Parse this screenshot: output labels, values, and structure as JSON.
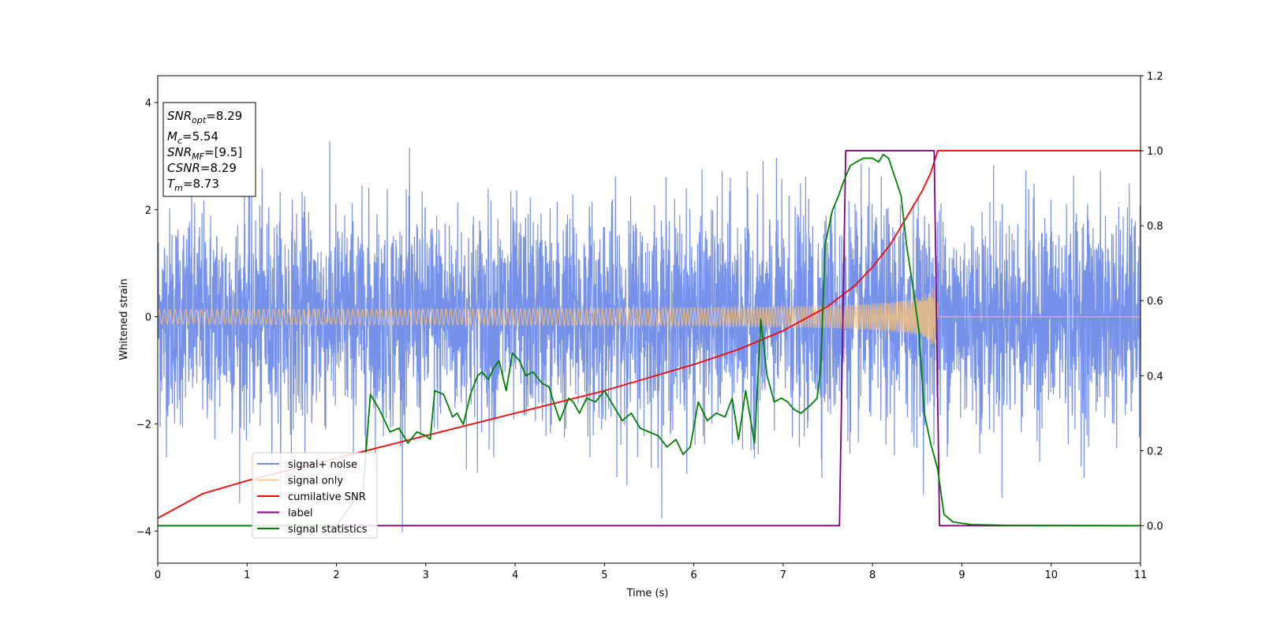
{
  "chart_data": {
    "type": "line",
    "title": "",
    "xlabel": "Time (s)",
    "ylabel": "Whitened strain",
    "xlim": [
      0,
      11
    ],
    "ylim_left": [
      -4.6,
      4.5
    ],
    "ylim_right": [
      -0.1,
      1.2
    ],
    "x_ticks": [
      "0",
      "1",
      "2",
      "3",
      "4",
      "5",
      "6",
      "7",
      "8",
      "9",
      "10",
      "11"
    ],
    "y_left_ticks": [
      "4",
      "2",
      "0",
      "−2",
      "−4"
    ],
    "y_right_ticks": [
      "1.2",
      "1.0",
      "0.8",
      "0.6",
      "0.4",
      "0.2",
      "0.0"
    ],
    "info_box": {
      "snr_opt": {
        "sym": "SNR",
        "sub": "opt",
        "value": "=8.29"
      },
      "mc": {
        "sym": "M",
        "sub": "c",
        "value": "=5.54"
      },
      "snr_mf": {
        "sym": "SNR",
        "sub": "MF",
        "value": "=[9.5]"
      },
      "csnr": {
        "sym": "CSNR",
        "sub": "",
        "value": "=8.29"
      },
      "tm": {
        "sym": "T",
        "sub": "m",
        "value": "=8.73"
      }
    },
    "legend": {
      "position": "lower-left",
      "entries": [
        "signal+ noise",
        "signal only",
        "cumilative SNR",
        "label",
        "signal statistics"
      ]
    },
    "series": [
      {
        "name": "signal+ noise",
        "axis": "left",
        "color": "#6f8be8",
        "kind": "noise",
        "sigma": 1.0,
        "duration": 11.0
      },
      {
        "name": "signal only",
        "axis": "left",
        "color": "#f5c07a",
        "kind": "chirp",
        "merger_time": 8.73,
        "amplitude_start": 0.08,
        "amplitude_peak": 0.95
      },
      {
        "name": "cumilative SNR",
        "axis": "right",
        "color": "#ff0000",
        "x": [
          0,
          0.5,
          1,
          1.5,
          2,
          2.5,
          3,
          3.5,
          4,
          4.5,
          5,
          5.5,
          6,
          6.5,
          7,
          7.5,
          7.8,
          8.0,
          8.2,
          8.4,
          8.55,
          8.65,
          8.73,
          8.75,
          11
        ],
        "y": [
          0.02,
          0.085,
          0.12,
          0.15,
          0.18,
          0.21,
          0.24,
          0.27,
          0.3,
          0.33,
          0.36,
          0.395,
          0.43,
          0.47,
          0.52,
          0.585,
          0.64,
          0.69,
          0.75,
          0.83,
          0.89,
          0.94,
          1.0,
          1.0,
          1.0
        ]
      },
      {
        "name": "label",
        "axis": "right",
        "color": "#800080",
        "x": [
          0,
          7.63,
          7.7,
          8.69,
          8.75,
          11
        ],
        "y": [
          0.0,
          0.0,
          1.0,
          1.0,
          0.0,
          0.0
        ]
      },
      {
        "name": "signal statistics",
        "axis": "right",
        "color": "#008000",
        "x": [
          0,
          0.3,
          1.0,
          2.0,
          2.3,
          2.38,
          2.48,
          2.6,
          2.7,
          2.8,
          2.9,
          3.0,
          3.05,
          3.1,
          3.2,
          3.3,
          3.35,
          3.42,
          3.5,
          3.58,
          3.63,
          3.7,
          3.76,
          3.82,
          3.9,
          3.97,
          4.05,
          4.12,
          4.2,
          4.3,
          4.38,
          4.43,
          4.5,
          4.6,
          4.65,
          4.72,
          4.8,
          4.9,
          5.0,
          5.1,
          5.2,
          5.3,
          5.4,
          5.5,
          5.6,
          5.7,
          5.8,
          5.88,
          5.96,
          6.05,
          6.15,
          6.25,
          6.35,
          6.43,
          6.5,
          6.58,
          6.68,
          6.75,
          6.82,
          6.9,
          6.98,
          7.05,
          7.12,
          7.2,
          7.3,
          7.38,
          7.42,
          7.47,
          7.55,
          7.62,
          7.68,
          7.75,
          7.82,
          7.9,
          8.0,
          8.07,
          8.12,
          8.18,
          8.25,
          8.32,
          8.38,
          8.45,
          8.52,
          8.58,
          8.65,
          8.73,
          8.8,
          8.9,
          9.1,
          9.5,
          11
        ],
        "y": [
          0.0,
          0.0,
          0.0,
          0.0,
          0.1,
          0.35,
          0.31,
          0.25,
          0.26,
          0.22,
          0.25,
          0.24,
          0.23,
          0.36,
          0.35,
          0.29,
          0.3,
          0.27,
          0.35,
          0.4,
          0.41,
          0.39,
          0.42,
          0.44,
          0.36,
          0.46,
          0.44,
          0.4,
          0.41,
          0.38,
          0.37,
          0.33,
          0.28,
          0.34,
          0.33,
          0.3,
          0.34,
          0.33,
          0.36,
          0.32,
          0.28,
          0.3,
          0.26,
          0.25,
          0.24,
          0.21,
          0.23,
          0.19,
          0.21,
          0.33,
          0.28,
          0.3,
          0.29,
          0.34,
          0.23,
          0.36,
          0.22,
          0.55,
          0.4,
          0.33,
          0.34,
          0.33,
          0.31,
          0.3,
          0.32,
          0.34,
          0.42,
          0.75,
          0.84,
          0.88,
          0.92,
          0.96,
          0.97,
          0.98,
          0.98,
          0.97,
          0.99,
          0.98,
          0.93,
          0.88,
          0.75,
          0.64,
          0.52,
          0.3,
          0.22,
          0.15,
          0.03,
          0.01,
          0.003,
          0.001,
          0.0
        ]
      }
    ]
  }
}
